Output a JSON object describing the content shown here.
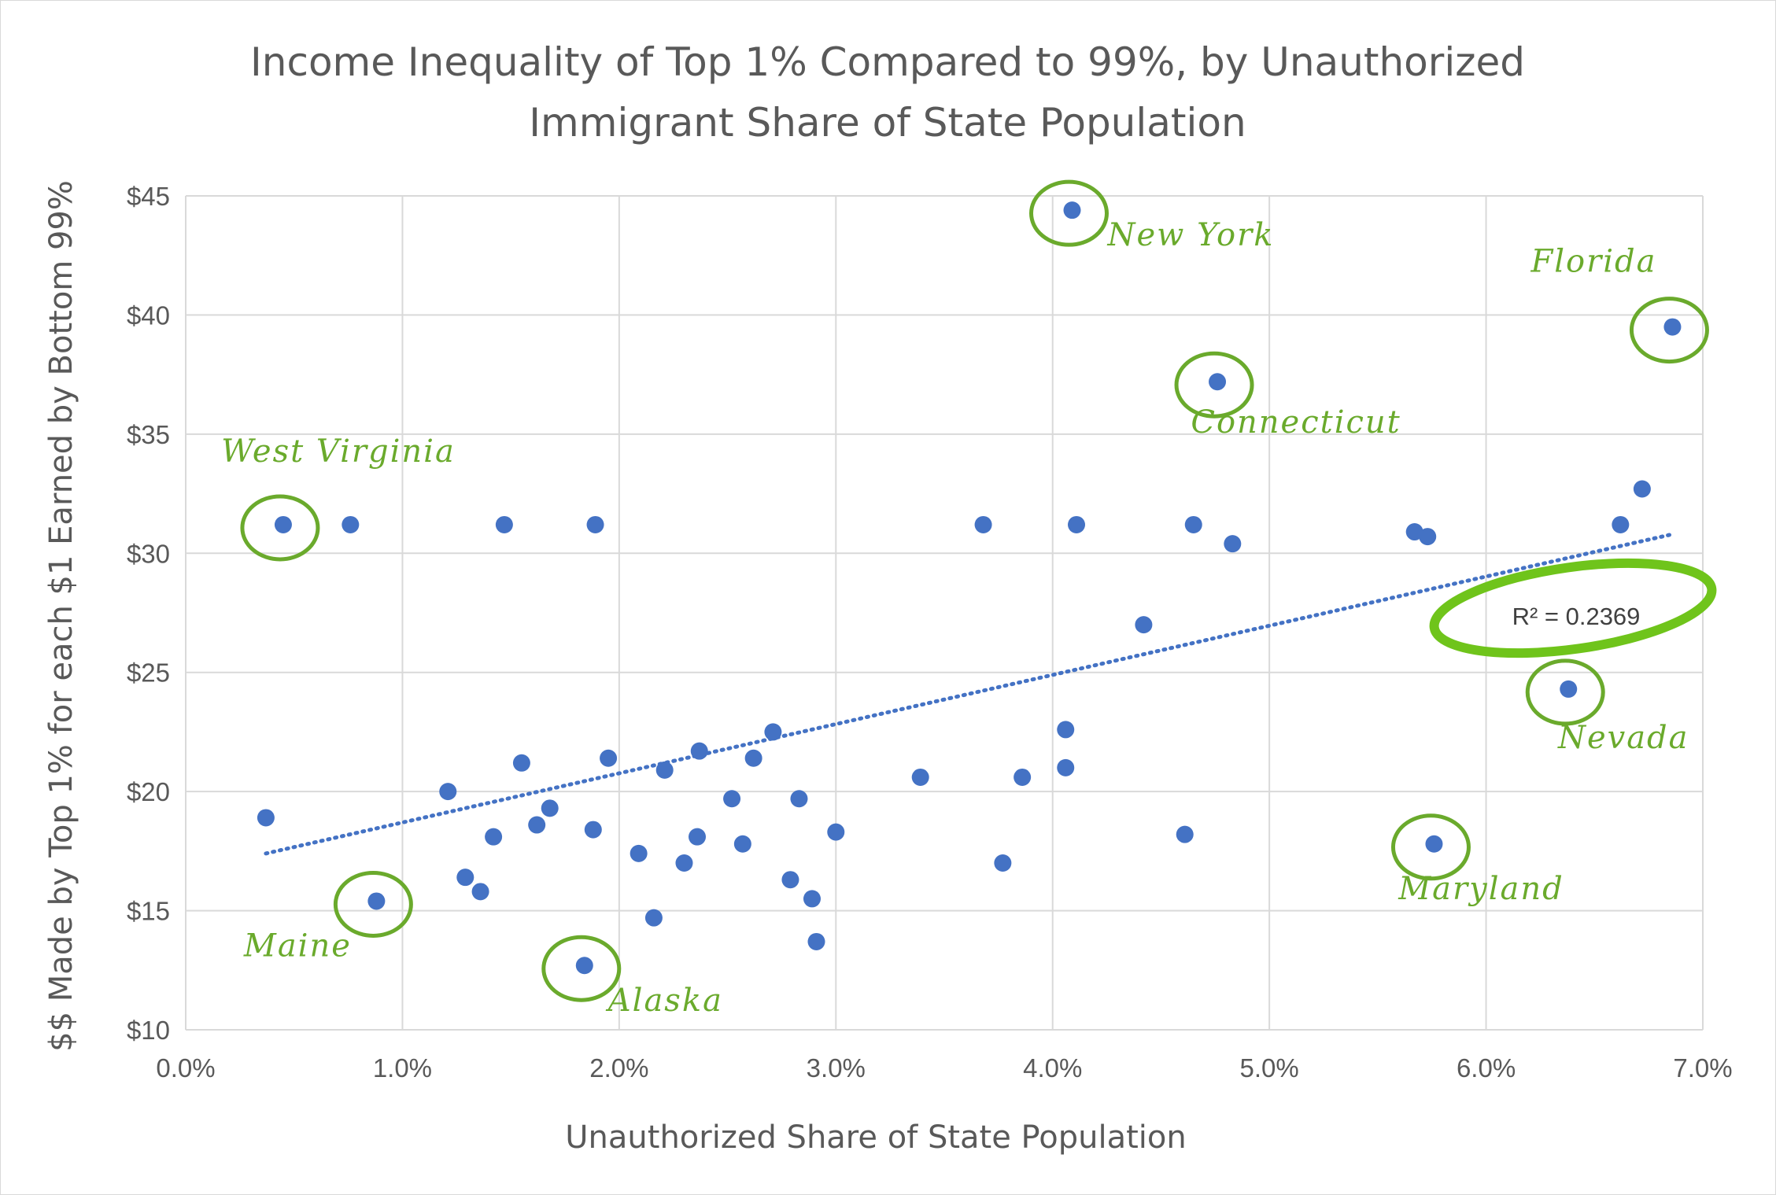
{
  "chart_data": {
    "type": "scatter",
    "title_lines": [
      "Income Inequality of Top 1% Compared to 99%, by Unauthorized",
      "Immigrant Share of State Population"
    ],
    "xlabel": "Unauthorized Share of State Population",
    "ylabel": "$$ Made by Top 1% for each $1 Earned by Bottom 99%",
    "xlim": [
      0,
      7
    ],
    "ylim": [
      10,
      45
    ],
    "x_ticks": [
      0,
      1,
      2,
      3,
      4,
      5,
      6,
      7
    ],
    "x_tick_labels": [
      "0.0%",
      "1.0%",
      "2.0%",
      "3.0%",
      "4.0%",
      "5.0%",
      "6.0%",
      "7.0%"
    ],
    "y_ticks": [
      10,
      15,
      20,
      25,
      30,
      35,
      40,
      45
    ],
    "y_tick_labels": [
      "$10",
      "$15",
      "$20",
      "$25",
      "$30",
      "$35",
      "$40",
      "$45"
    ],
    "grid": true,
    "marker_color": "#4472c4",
    "highlight_color": "#6aaa2c",
    "points": [
      {
        "x": 4.09,
        "y": 44.4
      },
      {
        "x": 6.86,
        "y": 39.5
      },
      {
        "x": 4.76,
        "y": 37.2
      },
      {
        "x": 6.72,
        "y": 32.7
      },
      {
        "x": 0.45,
        "y": 31.2
      },
      {
        "x": 0.76,
        "y": 31.2
      },
      {
        "x": 1.47,
        "y": 31.2
      },
      {
        "x": 1.89,
        "y": 31.2
      },
      {
        "x": 3.68,
        "y": 31.2
      },
      {
        "x": 4.11,
        "y": 31.2
      },
      {
        "x": 4.65,
        "y": 31.2
      },
      {
        "x": 6.62,
        "y": 31.2
      },
      {
        "x": 5.67,
        "y": 30.9
      },
      {
        "x": 5.73,
        "y": 30.7
      },
      {
        "x": 4.83,
        "y": 30.4
      },
      {
        "x": 4.42,
        "y": 27.0
      },
      {
        "x": 6.38,
        "y": 24.3
      },
      {
        "x": 4.06,
        "y": 22.6
      },
      {
        "x": 2.71,
        "y": 22.5
      },
      {
        "x": 2.37,
        "y": 21.7
      },
      {
        "x": 1.95,
        "y": 21.4
      },
      {
        "x": 2.62,
        "y": 21.4
      },
      {
        "x": 1.55,
        "y": 21.2
      },
      {
        "x": 4.06,
        "y": 21.0
      },
      {
        "x": 2.21,
        "y": 20.9
      },
      {
        "x": 3.39,
        "y": 20.6
      },
      {
        "x": 3.86,
        "y": 20.6
      },
      {
        "x": 1.21,
        "y": 20.0
      },
      {
        "x": 2.52,
        "y": 19.7
      },
      {
        "x": 2.83,
        "y": 19.7
      },
      {
        "x": 1.68,
        "y": 19.3
      },
      {
        "x": 0.37,
        "y": 18.9
      },
      {
        "x": 1.62,
        "y": 18.6
      },
      {
        "x": 1.88,
        "y": 18.4
      },
      {
        "x": 3.0,
        "y": 18.3
      },
      {
        "x": 4.61,
        "y": 18.2
      },
      {
        "x": 1.42,
        "y": 18.1
      },
      {
        "x": 2.36,
        "y": 18.1
      },
      {
        "x": 2.57,
        "y": 17.8
      },
      {
        "x": 5.76,
        "y": 17.8
      },
      {
        "x": 2.09,
        "y": 17.4
      },
      {
        "x": 2.3,
        "y": 17.0
      },
      {
        "x": 3.77,
        "y": 17.0
      },
      {
        "x": 1.29,
        "y": 16.4
      },
      {
        "x": 2.79,
        "y": 16.3
      },
      {
        "x": 1.36,
        "y": 15.8
      },
      {
        "x": 2.89,
        "y": 15.5
      },
      {
        "x": 0.88,
        "y": 15.4
      },
      {
        "x": 2.16,
        "y": 14.7
      },
      {
        "x": 2.91,
        "y": 13.7
      },
      {
        "x": 1.84,
        "y": 12.7
      }
    ],
    "trendline": {
      "x": [
        0.37,
        6.86
      ],
      "y": [
        17.4,
        30.8
      ],
      "style": "dotted"
    },
    "r_squared_label": "R² = 0.2369",
    "annotations": [
      {
        "label": "New York",
        "x": 4.09,
        "y": 44.4
      },
      {
        "label": "Florida",
        "x": 6.86,
        "y": 39.5
      },
      {
        "label": "Connecticut",
        "x": 4.76,
        "y": 37.2
      },
      {
        "label": "West Virginia",
        "x": 0.45,
        "y": 31.2
      },
      {
        "label": "Nevada",
        "x": 6.38,
        "y": 24.3
      },
      {
        "label": "Maryland",
        "x": 5.76,
        "y": 17.8
      },
      {
        "label": "Maine",
        "x": 0.88,
        "y": 15.4
      },
      {
        "label": "Alaska",
        "x": 1.84,
        "y": 12.7
      }
    ]
  }
}
